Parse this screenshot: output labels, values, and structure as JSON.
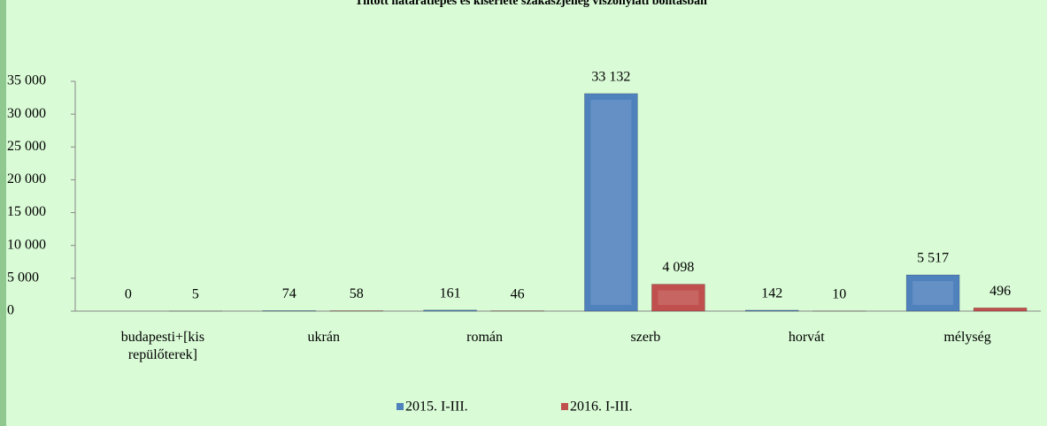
{
  "chart_data": {
    "type": "bar",
    "title": "Tiltott határátlépés és kísérlete szakaszjelleg viszonylati bontásban",
    "categories": [
      "budapesti+[kis repülőterek]",
      "ukrán",
      "román",
      "szerb",
      "horvát",
      "mélység"
    ],
    "series": [
      {
        "name": "2015. I-III.",
        "color": "#4f81bd",
        "values": [
          0,
          74,
          161,
          33132,
          142,
          5517
        ],
        "value_labels": [
          "0",
          "74",
          "161",
          "33 132",
          "142",
          "5 517"
        ]
      },
      {
        "name": "2016. I-III.",
        "color": "#c0504d",
        "values": [
          5,
          58,
          46,
          4098,
          10,
          496
        ],
        "value_labels": [
          "5",
          "58",
          "46",
          "4 098",
          "10",
          "496"
        ]
      }
    ],
    "ylim": [
      0,
      35000
    ],
    "yticks": [
      0,
      {
        "value": 5000,
        "label": "5 000"
      },
      {
        "value": 10000,
        "label": "10 000"
      },
      {
        "value": 15000,
        "label": "15 000"
      },
      {
        "value": 20000,
        "label": "20 000"
      },
      {
        "value": 25000,
        "label": "25 000"
      },
      {
        "value": 30000,
        "label": "30 000"
      },
      {
        "value": 35000,
        "label": "35 000"
      }
    ],
    "grid": false
  }
}
